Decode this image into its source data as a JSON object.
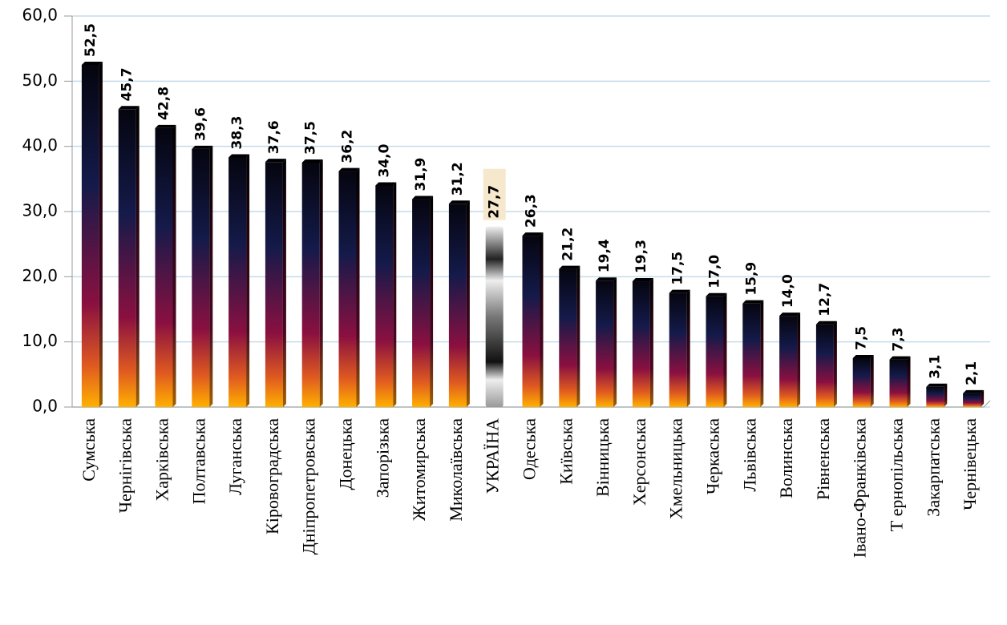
{
  "chart_data": {
    "type": "bar",
    "categories": [
      "Сумська",
      "Чернігівська",
      "Харківська",
      "Полтавська",
      "Луганська",
      "Кіровоградська",
      "Дніпропетровська",
      "Донецька",
      "Запорізька",
      "Житомирська",
      "Миколаївська",
      "УКРАЇНА",
      "Одеська",
      "Київська",
      "Вінницька",
      "Херсонська",
      "Хмельницька",
      "Черкаська",
      "Львівська",
      "Волинська",
      "Рівненська",
      "Івано-Франківська",
      "Т ернопільська",
      "Закарпатська",
      "Чернівецька"
    ],
    "values": [
      52.5,
      45.7,
      42.8,
      39.6,
      38.3,
      37.6,
      37.5,
      36.2,
      34.0,
      31.9,
      31.2,
      27.7,
      26.3,
      21.2,
      19.4,
      19.3,
      17.5,
      17.0,
      15.9,
      14.0,
      12.7,
      7.5,
      7.3,
      3.1,
      2.1
    ],
    "value_labels": [
      "52,5",
      "45,7",
      "42,8",
      "39,6",
      "38,3",
      "37,6",
      "37,5",
      "36,2",
      "34,0",
      "31,9",
      "31,2",
      "27,7",
      "26,3",
      "21,2",
      "19,4",
      "19,3",
      "17,5",
      "17,0",
      "15,9",
      "14,0",
      "12,7",
      "7,5",
      "7,3",
      "3,1",
      "2,1"
    ],
    "highlight": "УКРАЇНА",
    "ylim": [
      0,
      60
    ],
    "yticks": [
      {
        "value": 0,
        "label": "0,0"
      },
      {
        "value": 10,
        "label": "10,0"
      },
      {
        "value": 20,
        "label": "20,0"
      },
      {
        "value": 30,
        "label": "30,0"
      },
      {
        "value": 40,
        "label": "40,0"
      },
      {
        "value": 50,
        "label": "50,0"
      },
      {
        "value": 60,
        "label": "60,0"
      }
    ],
    "grid": true
  }
}
